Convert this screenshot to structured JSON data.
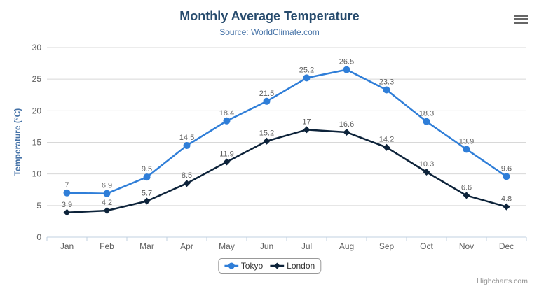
{
  "chart_data": {
    "type": "line",
    "title": "Monthly Average Temperature",
    "subtitle": "Source: WorldClimate.com",
    "xlabel": "",
    "ylabel": "Temperature (°C)",
    "ylim": [
      0,
      30
    ],
    "ytick_step": 5,
    "grid": true,
    "legend_position": "bottom",
    "data_labels": true,
    "categories": [
      "Jan",
      "Feb",
      "Mar",
      "Apr",
      "May",
      "Jun",
      "Jul",
      "Aug",
      "Sep",
      "Oct",
      "Nov",
      "Dec"
    ],
    "series": [
      {
        "name": "Tokyo",
        "marker": "circle",
        "color": "#2f7ed8",
        "values": [
          7,
          6.9,
          9.5,
          14.5,
          18.4,
          21.5,
          25.2,
          26.5,
          23.3,
          18.3,
          13.9,
          9.6
        ]
      },
      {
        "name": "London",
        "marker": "diamond",
        "color": "#0d233a",
        "values": [
          3.9,
          4.2,
          5.7,
          8.5,
          11.9,
          15.2,
          17,
          16.6,
          14.2,
          10.3,
          6.6,
          4.8
        ]
      }
    ]
  },
  "ui": {
    "credits": "Highcharts.com",
    "menu_icon": "hamburger-icon",
    "colors": {
      "title": "#274b6d",
      "subtitle": "#4572a7",
      "axis_title": "#4572a7",
      "axis_labels": "#606060",
      "data_label": "#606060",
      "grid_line": "#d8d8d8",
      "axis_line": "#c0d0e0",
      "credits": "#909090",
      "legend_text": "#333333",
      "background": "#ffffff"
    }
  }
}
